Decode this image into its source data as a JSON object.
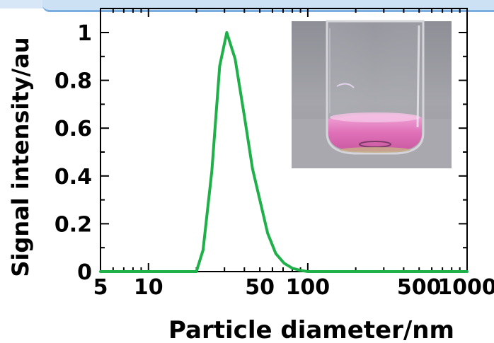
{
  "chart_data": {
    "type": "line",
    "xscale": "log",
    "xlim": [
      5,
      1000
    ],
    "ylim": [
      0,
      1
    ],
    "xlabel": "Particle diameter/nm",
    "ylabel": "Signal intensity/au",
    "grid": false,
    "line_color": "#1fb04a",
    "xticks": [
      {
        "value": 5,
        "label": "5"
      },
      {
        "value": 10,
        "label": "10"
      },
      {
        "value": 50,
        "label": "50"
      },
      {
        "value": 100,
        "label": "100"
      },
      {
        "value": 500,
        "label": "500"
      },
      {
        "value": 1000,
        "label": "1000"
      }
    ],
    "yticks": [
      {
        "value": 0,
        "label": "0"
      },
      {
        "value": 0.2,
        "label": "0.2"
      },
      {
        "value": 0.4,
        "label": "0.4"
      },
      {
        "value": 0.6,
        "label": "0.6"
      },
      {
        "value": 0.8,
        "label": "0.8"
      },
      {
        "value": 1,
        "label": "1"
      }
    ],
    "series": [
      {
        "x": [
          5,
          18,
          20,
          22,
          25,
          28,
          31,
          35,
          40,
          45,
          50,
          56,
          63,
          71,
          80,
          90,
          100,
          150,
          1000
        ],
        "y": [
          0,
          0,
          0,
          0.09,
          0.42,
          0.86,
          1.0,
          0.89,
          0.65,
          0.43,
          0.3,
          0.16,
          0.075,
          0.035,
          0.014,
          0.005,
          0,
          0,
          0
        ]
      }
    ]
  },
  "inset": {
    "icon": "pink-solution-vial-photo",
    "liquid_color": "#e070b8",
    "background_color": "#9a9aa2"
  }
}
